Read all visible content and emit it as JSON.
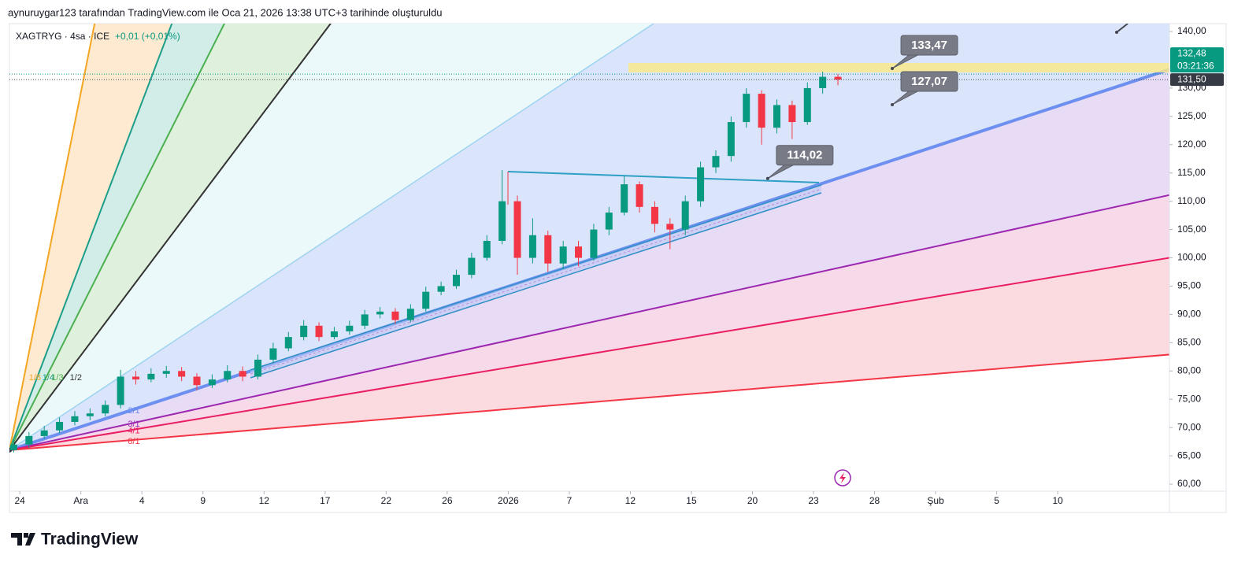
{
  "header": {
    "attribution": "aynuruygar123 tarafından TradingView.com ile Oca 21, 2026 13:38 UTC+3 tarihinde oluşturuldu",
    "symbol": "XAGTRYG · 4sa · ICE",
    "change": "+0,01 (+0,01%)"
  },
  "chart_data": {
    "type": "candlestick",
    "x": [
      -0.1,
      0.15,
      0.4,
      0.65,
      0.9,
      1.15,
      1.4,
      1.65,
      1.9,
      2.15,
      2.4,
      2.65,
      2.9,
      3.15,
      3.4,
      3.65,
      3.9,
      4.15,
      4.4,
      4.65,
      4.9,
      5.15,
      5.4,
      5.65,
      5.9,
      6.15,
      6.4,
      6.65,
      6.9,
      7.15,
      7.4,
      7.65,
      7.9,
      8.15,
      8.4,
      8.65,
      8.9,
      9.15,
      9.4,
      9.65,
      9.9,
      10.15,
      10.4,
      10.65,
      10.9,
      11.15,
      11.4,
      11.65,
      11.9,
      12.15,
      12.4,
      12.65,
      12.9,
      13.15,
      13.4
    ],
    "open": [
      66,
      67,
      68.5,
      69.5,
      71,
      72,
      72.5,
      74,
      79,
      78.5,
      79.5,
      80,
      79,
      77.5,
      78.5,
      80,
      79,
      82,
      84,
      86,
      88,
      86,
      87,
      88,
      90,
      90.5,
      89,
      91,
      94,
      95,
      97,
      100,
      103,
      110,
      100,
      104,
      99,
      102,
      100,
      105,
      108,
      113,
      109,
      106,
      105,
      110,
      116,
      118,
      124,
      129,
      123,
      127,
      124,
      130,
      132
    ],
    "high": [
      67.8,
      69.2,
      70.3,
      71.8,
      72.9,
      73.4,
      74.8,
      80.2,
      80,
      80.5,
      80.9,
      80.7,
      79.6,
      79.4,
      81,
      80.8,
      82.9,
      85,
      86.9,
      89,
      88.6,
      87.8,
      88.9,
      90.8,
      91.3,
      91.1,
      91.8,
      94.9,
      95.8,
      97.9,
      100.9,
      104,
      115.5,
      111,
      107,
      104.8,
      103,
      103,
      106,
      109,
      114.5,
      113.5,
      110,
      107,
      111,
      117,
      119,
      125,
      130,
      129.6,
      128,
      127.8,
      131,
      132.9,
      132.5
    ],
    "low": [
      65.6,
      66.4,
      68,
      69,
      70.4,
      71.3,
      72,
      73.4,
      77.6,
      78,
      78.8,
      78.2,
      76.6,
      77,
      78,
      78.2,
      78.5,
      81.4,
      83.5,
      85.4,
      85.3,
      85.6,
      86.4,
      87.4,
      89.3,
      88.3,
      88.6,
      90.5,
      93.4,
      94.5,
      96.4,
      99.5,
      102.4,
      97,
      99,
      97.5,
      98,
      98.5,
      99.5,
      104,
      107.5,
      108,
      104.5,
      101.5,
      104,
      109,
      115,
      117,
      123,
      120,
      122,
      121,
      123.5,
      129,
      130.5
    ],
    "close": [
      67,
      68.5,
      69.5,
      71,
      72,
      72.5,
      74,
      79,
      78.5,
      79.5,
      80,
      79,
      77.5,
      78.5,
      80,
      79,
      82,
      84,
      86,
      88,
      86,
      87,
      88,
      90,
      90.5,
      89,
      91,
      94,
      95,
      97,
      100,
      103,
      110,
      100,
      104,
      99,
      102,
      100,
      105,
      108,
      113,
      109,
      106,
      105,
      110,
      116,
      118,
      124,
      129,
      123,
      127,
      124,
      130,
      132,
      131.5
    ],
    "up_color": "#089981",
    "down_color": "#f23645",
    "xlim": [
      -0.17,
      18.83
    ],
    "xticks": [
      {
        "value": 0,
        "label": "24"
      },
      {
        "value": 1,
        "label": "Ara"
      },
      {
        "value": 2,
        "label": "4"
      },
      {
        "value": 3,
        "label": "9"
      },
      {
        "value": 4,
        "label": "12"
      },
      {
        "value": 5,
        "label": "17"
      },
      {
        "value": 6,
        "label": "22"
      },
      {
        "value": 7,
        "label": "26"
      },
      {
        "value": 8,
        "label": "2026"
      },
      {
        "value": 9,
        "label": "7"
      },
      {
        "value": 10,
        "label": "12"
      },
      {
        "value": 11,
        "label": "15"
      },
      {
        "value": 12,
        "label": "20"
      },
      {
        "value": 13,
        "label": "23"
      },
      {
        "value": 14,
        "label": "28"
      },
      {
        "value": 15,
        "label": "Şub"
      },
      {
        "value": 16,
        "label": "5"
      },
      {
        "value": 17,
        "label": "10"
      }
    ],
    "ylim": [
      58.75,
      141.4
    ],
    "yticks": [
      {
        "value": 60,
        "label": "60,00"
      },
      {
        "value": 65,
        "label": "65,00"
      },
      {
        "value": 70,
        "label": "70,00"
      },
      {
        "value": 75,
        "label": "75,00"
      },
      {
        "value": 80,
        "label": "80,00"
      },
      {
        "value": 85,
        "label": "85,00"
      },
      {
        "value": 90,
        "label": "90,00"
      },
      {
        "value": 95,
        "label": "95,00"
      },
      {
        "value": 100,
        "label": "100,00"
      },
      {
        "value": 105,
        "label": "105,00"
      },
      {
        "value": 110,
        "label": "110,00"
      },
      {
        "value": 115,
        "label": "115,00"
      },
      {
        "value": 120,
        "label": "120,00"
      },
      {
        "value": 125,
        "label": "125,00"
      },
      {
        "value": 130,
        "label": "130,00"
      },
      {
        "value": 140,
        "label": "140,00"
      }
    ],
    "fan": {
      "origin": [
        -0.17,
        66
      ],
      "lines": [
        {
          "name": "1/8",
          "color": "#f5a623",
          "fill": "#fde8cc",
          "width": 2,
          "end": [
            1.225,
            141.4
          ]
        },
        {
          "name": "1/4",
          "color": "#1e9e8a",
          "fill": "#cdebe4",
          "width": 2,
          "end": [
            2.49,
            141.4
          ]
        },
        {
          "name": "1/3",
          "color": "#4caf50",
          "fill": "#dcf0d8",
          "width": 2,
          "end": [
            3.35,
            141.4
          ]
        },
        {
          "name": "1/2",
          "color": "#333333",
          "fill": "#eaf8fa",
          "width": 2,
          "end": [
            5.09,
            141.4
          ]
        },
        {
          "color": "#9fd3f0",
          "fill": "#d6e2fc",
          "width": 1.5,
          "end": [
            10.38,
            141.4
          ]
        },
        {
          "name": "2/1",
          "color": "#6d8ff0",
          "fill": "#e5d7f4",
          "width": 4,
          "end": [
            18.83,
            133.3
          ]
        },
        {
          "name": "3/1",
          "color": "#9c27b0",
          "fill": "#f6d6e7",
          "width": 2,
          "end": [
            18.83,
            111.1
          ]
        },
        {
          "name": "4/1",
          "color": "#e91e63",
          "fill": "#fbd7dc",
          "width": 2,
          "end": [
            18.83,
            100.0
          ]
        },
        {
          "name": "8/1",
          "color": "#f23645",
          "width": 2,
          "end": [
            18.83,
            82.9
          ]
        }
      ]
    },
    "callouts": {
      "x": [
        14.29,
        14.29,
        12.25
      ],
      "values": [
        133.47,
        127.07,
        114.02
      ],
      "value_labels": [
        "133,47",
        "127,07",
        "114,02"
      ]
    },
    "last_price": {
      "value": 132.48,
      "label": "132,48",
      "countdown": "03:21:36"
    },
    "prev_close": {
      "value": 131.5,
      "label": "131,50"
    }
  },
  "footer": {
    "logo": "TradingView"
  }
}
